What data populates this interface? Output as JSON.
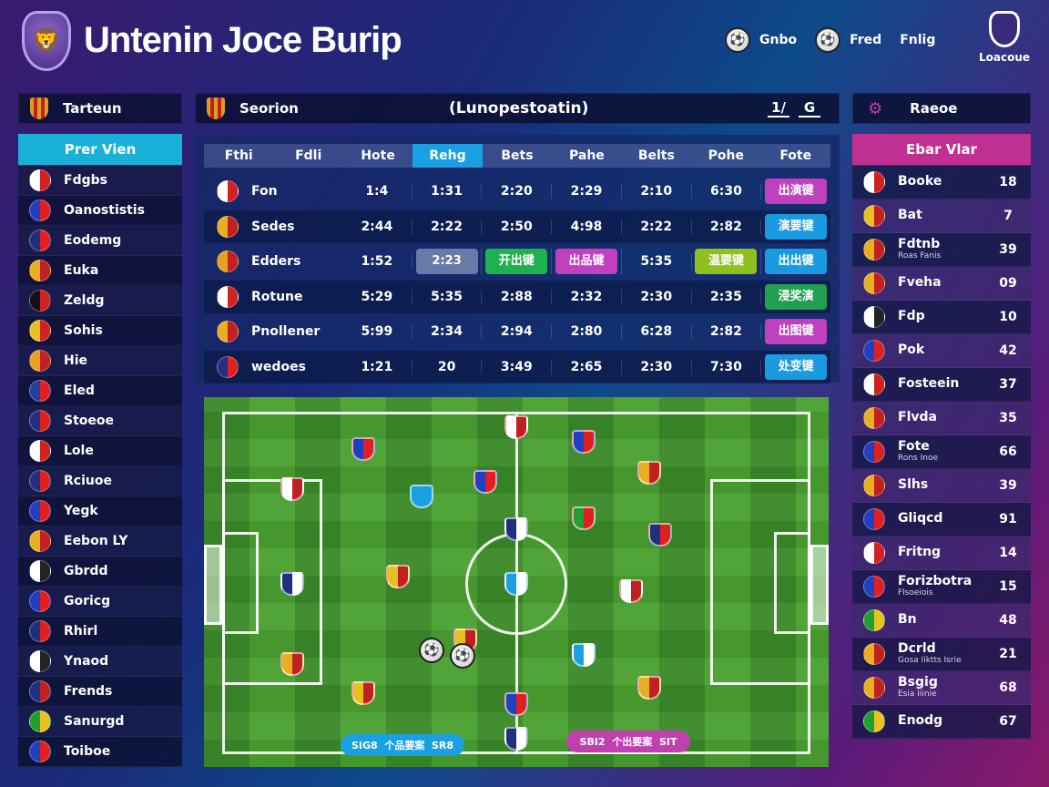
{
  "header": {
    "title": "Untenin Joce Burip",
    "nav": [
      "Gnbo",
      "Fred",
      "Fnlig"
    ],
    "league_label": "Loacoue"
  },
  "left_panel": {
    "title": "Tarteun",
    "subtitle": "Prer Vien",
    "items": [
      {
        "name": "Fdgbs",
        "colors": [
          "#fff",
          "#d02020"
        ]
      },
      {
        "name": "Oanostistis",
        "colors": [
          "#2040c0",
          "#e02020"
        ]
      },
      {
        "name": "Eodemg",
        "colors": [
          "#203080",
          "#e02020"
        ]
      },
      {
        "name": "Euka",
        "colors": [
          "#e8b020",
          "#c02020"
        ]
      },
      {
        "name": "Zeldg",
        "colors": [
          "#111",
          "#d02020"
        ]
      },
      {
        "name": "Sohis",
        "colors": [
          "#e8c020",
          "#d02020"
        ]
      },
      {
        "name": "Hie",
        "colors": [
          "#e8a020",
          "#c02020"
        ]
      },
      {
        "name": "Eled",
        "colors": [
          "#2040a0",
          "#e02020"
        ]
      },
      {
        "name": "Stoeoe",
        "colors": [
          "#203080",
          "#e02020"
        ]
      },
      {
        "name": "Lole",
        "colors": [
          "#fff",
          "#d02020"
        ]
      },
      {
        "name": "Rciuoe",
        "colors": [
          "#203080",
          "#e02020"
        ]
      },
      {
        "name": "Yegk",
        "colors": [
          "#2040c0",
          "#e02020"
        ]
      },
      {
        "name": "Eebon LY",
        "colors": [
          "#e8b020",
          "#c02020"
        ]
      },
      {
        "name": "Gbrdd",
        "colors": [
          "#fff",
          "#222"
        ]
      },
      {
        "name": "Goricg",
        "colors": [
          "#2040c0",
          "#e02020"
        ]
      },
      {
        "name": "Rhirl",
        "colors": [
          "#203080",
          "#e02020"
        ]
      },
      {
        "name": "Ynaod",
        "colors": [
          "#fff",
          "#222"
        ]
      },
      {
        "name": "Frends",
        "colors": [
          "#203080",
          "#c02020"
        ]
      },
      {
        "name": "Sanurgd",
        "colors": [
          "#20a030",
          "#e8c020"
        ]
      },
      {
        "name": "Toiboe",
        "colors": [
          "#2040c0",
          "#e02020"
        ]
      }
    ]
  },
  "center": {
    "title": "Seorion",
    "heading": "(Lunopestoatin)",
    "ctrl_a": "1/",
    "ctrl_b": "G",
    "table": {
      "headers": [
        "Fthi",
        "Fdli",
        "Hote",
        "Rehg",
        "Bets",
        "Pahe",
        "Belts",
        "Pohe",
        "Fote"
      ],
      "rows": [
        {
          "team": "Fon",
          "vals": [
            "1:4",
            "1:31",
            "2:20",
            "2:29",
            "2:10",
            "6:30"
          ],
          "chip": "出演键",
          "chip_color": "#c040c0"
        },
        {
          "team": "Sedes",
          "vals": [
            "2:44",
            "2:22",
            "2:50",
            "4:98",
            "2:22",
            "2:82"
          ],
          "chip": "演要键",
          "chip_color": "#1a9ae0"
        },
        {
          "team": "Edders",
          "vals": [
            "1:52",
            "2:23",
            "开出键",
            "出品键",
            "5:35",
            "温要键"
          ],
          "chip": "出出键",
          "chip_color": "#1a9ae0"
        },
        {
          "team": "Rotune",
          "vals": [
            "5:29",
            "5:35",
            "2:88",
            "2:32",
            "2:30",
            "2:35"
          ],
          "chip": "浸奖演",
          "chip_color": "#20a050"
        },
        {
          "team": "Pnollener",
          "vals": [
            "5:99",
            "2:34",
            "2:94",
            "2:80",
            "6:28",
            "2:82"
          ],
          "chip": "出图键",
          "chip_color": "#c040c0"
        },
        {
          "team": "wedoes",
          "vals": [
            "1:21",
            "20",
            "3:49",
            "2:65",
            "2:30",
            "7:30"
          ],
          "chip": "处变键",
          "chip_color": "#1a9ae0"
        }
      ]
    },
    "pitch": {
      "bottom_left_pill": [
        "SIG8",
        "个品要案",
        "SR8"
      ],
      "bottom_right_pill": [
        "SBI2",
        "个出要案",
        "SIT"
      ]
    }
  },
  "right_panel": {
    "title": "Raeoe",
    "subtitle": "Ebar Vlar",
    "items": [
      {
        "name": "Booke",
        "sub": "",
        "num": "18",
        "colors": [
          "#fff",
          "#d02020"
        ]
      },
      {
        "name": "Bat",
        "sub": "",
        "num": "7",
        "colors": [
          "#e8c020",
          "#c02020"
        ]
      },
      {
        "name": "Fdtnb",
        "sub": "Roas Fanis",
        "num": "39",
        "colors": [
          "#e8b020",
          "#c02020"
        ]
      },
      {
        "name": "Fveha",
        "sub": "",
        "num": "09",
        "colors": [
          "#e8b020",
          "#c02020"
        ]
      },
      {
        "name": "Fdp",
        "sub": "",
        "num": "10",
        "colors": [
          "#fff",
          "#222"
        ]
      },
      {
        "name": "Pok",
        "sub": "",
        "num": "42",
        "colors": [
          "#2040c0",
          "#e02020"
        ]
      },
      {
        "name": "Fosteein",
        "sub": "",
        "num": "37",
        "colors": [
          "#fff",
          "#d02020"
        ]
      },
      {
        "name": "Flvda",
        "sub": "",
        "num": "35",
        "colors": [
          "#e8b020",
          "#c02020"
        ]
      },
      {
        "name": "Fote",
        "sub": "Rons Inoe",
        "num": "66",
        "colors": [
          "#2040c0",
          "#e02020"
        ]
      },
      {
        "name": "Slhs",
        "sub": "",
        "num": "39",
        "colors": [
          "#e8b020",
          "#c02020"
        ]
      },
      {
        "name": "Gliqcd",
        "sub": "",
        "num": "91",
        "colors": [
          "#2040c0",
          "#e02020"
        ]
      },
      {
        "name": "Fritng",
        "sub": "",
        "num": "14",
        "colors": [
          "#fff",
          "#d02020"
        ]
      },
      {
        "name": "Forizbotra",
        "sub": "Flsoeiois",
        "num": "15",
        "colors": [
          "#2040c0",
          "#e02020"
        ]
      },
      {
        "name": "Bn",
        "sub": "",
        "num": "48",
        "colors": [
          "#20a030",
          "#e8c020"
        ]
      },
      {
        "name": "Dcrld",
        "sub": "Gosa Iiktts Isrie",
        "num": "21",
        "colors": [
          "#e8b020",
          "#c02020"
        ]
      },
      {
        "name": "Bsgig",
        "sub": "Esia Iiinie",
        "num": "68",
        "colors": [
          "#e8b020",
          "#c02020"
        ]
      },
      {
        "name": "Enodg",
        "sub": "",
        "num": "67",
        "colors": [
          "#20a030",
          "#e8c020"
        ]
      }
    ]
  }
}
